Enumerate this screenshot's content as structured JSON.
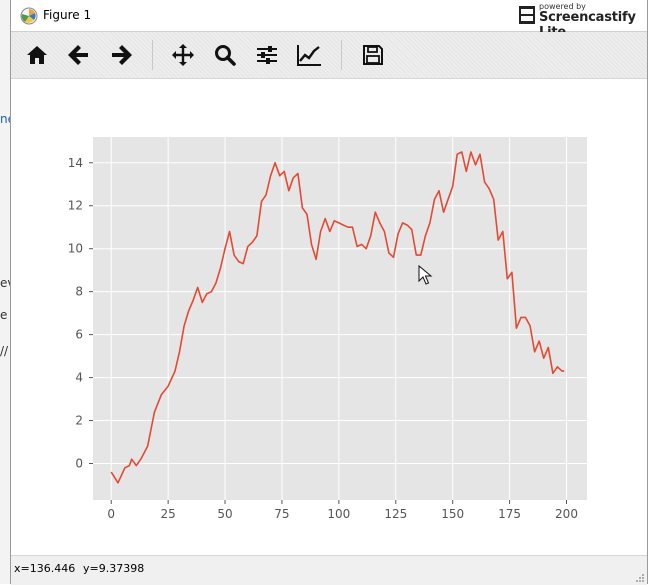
{
  "window": {
    "title": "Figure 1"
  },
  "background": {
    "snippets": [
      "ne",
      "ev",
      "e",
      "//"
    ]
  },
  "watermark": {
    "small": "powered by",
    "big": "Screencastify Lite"
  },
  "toolbar": {
    "tools": [
      {
        "name": "home-icon",
        "label": "Home"
      },
      {
        "name": "back-icon",
        "label": "Back"
      },
      {
        "name": "forward-icon",
        "label": "Forward"
      },
      {
        "name": "pan-icon",
        "label": "Pan"
      },
      {
        "name": "zoom-icon",
        "label": "Zoom"
      },
      {
        "name": "configure-subplots-icon",
        "label": "Configure subplots"
      },
      {
        "name": "edit-axis-icon",
        "label": "Edit axis"
      },
      {
        "name": "save-icon",
        "label": "Save"
      }
    ]
  },
  "status": {
    "x": "x=136.446",
    "y": "y=9.37398"
  },
  "chart_data": {
    "type": "line",
    "title": "",
    "xlabel": "",
    "ylabel": "",
    "xlim": [
      -8,
      209
    ],
    "ylim": [
      -1.7,
      15.2
    ],
    "xticks": [
      0,
      25,
      50,
      75,
      100,
      125,
      150,
      175,
      200
    ],
    "yticks": [
      0,
      2,
      4,
      6,
      8,
      10,
      12,
      14
    ],
    "grid": true,
    "style": "ggplot",
    "line_color": "#e24a33",
    "background_color": "#e5e5e5",
    "x": [
      0,
      3,
      6,
      8,
      9,
      11,
      13,
      16,
      19,
      22,
      25,
      28,
      30,
      32,
      34,
      36,
      38,
      40,
      42,
      44,
      46,
      48,
      50,
      52,
      54,
      56,
      58,
      60,
      62,
      64,
      66,
      68,
      70,
      72,
      74,
      76,
      78,
      80,
      82,
      84,
      86,
      88,
      90,
      92,
      94,
      96,
      98,
      100,
      102,
      104,
      106,
      108,
      110,
      112,
      114,
      116,
      118,
      120,
      122,
      124,
      126,
      128,
      130,
      132,
      134,
      136,
      138,
      140,
      142,
      144,
      146,
      148,
      150,
      152,
      154,
      156,
      158,
      160,
      162,
      164,
      166,
      168,
      170,
      172,
      174,
      176,
      178,
      180,
      182,
      184,
      186,
      188,
      190,
      192,
      194,
      196,
      198,
      199
    ],
    "y": [
      -0.4,
      -0.9,
      -0.2,
      -0.1,
      0.2,
      -0.1,
      0.2,
      0.8,
      2.4,
      3.2,
      3.6,
      4.3,
      5.2,
      6.4,
      7.1,
      7.6,
      8.2,
      7.5,
      7.9,
      8.0,
      8.4,
      9.1,
      10.0,
      10.8,
      9.7,
      9.4,
      9.3,
      10.1,
      10.3,
      10.6,
      12.2,
      12.5,
      13.4,
      14.0,
      13.4,
      13.6,
      12.7,
      13.3,
      13.5,
      11.9,
      11.6,
      10.2,
      9.5,
      10.8,
      11.4,
      10.8,
      11.3,
      11.2,
      11.1,
      11.0,
      11.0,
      10.1,
      10.2,
      10.0,
      10.6,
      11.7,
      11.2,
      10.8,
      9.8,
      9.6,
      10.7,
      11.2,
      11.1,
      10.9,
      9.7,
      9.7,
      10.6,
      11.2,
      12.3,
      12.7,
      11.7,
      12.3,
      12.9,
      14.4,
      14.5,
      13.6,
      14.5,
      13.9,
      14.4,
      13.1,
      12.8,
      12.3,
      10.4,
      10.8,
      8.6,
      8.9,
      6.3,
      6.8,
      6.8,
      6.4,
      5.2,
      5.7,
      4.9,
      5.4,
      4.2,
      4.5,
      4.3,
      4.3
    ]
  }
}
